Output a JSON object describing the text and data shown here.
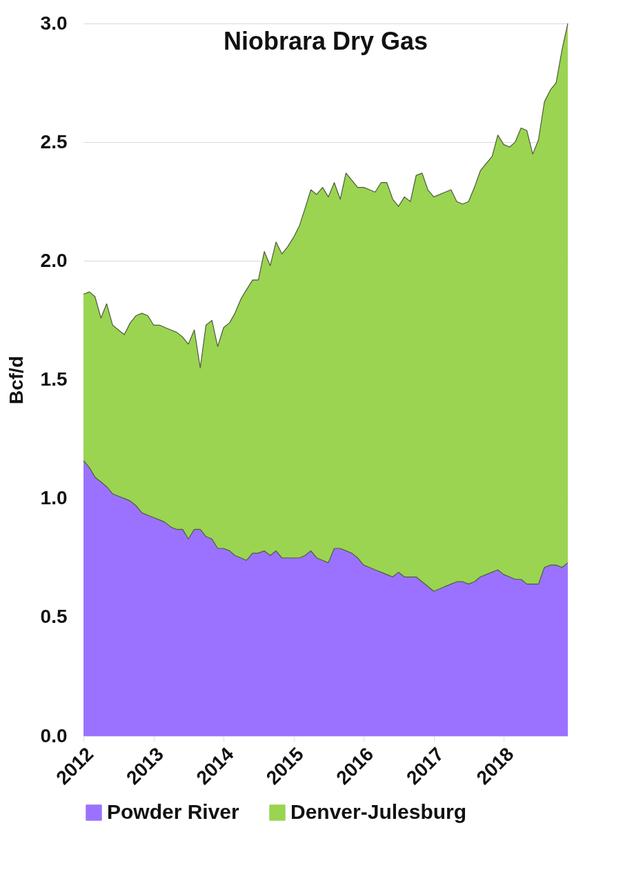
{
  "chart_data": {
    "type": "area",
    "title": "Niobrara Dry Gas",
    "ylabel": "Bcf/d",
    "stacked": true,
    "x": [
      "2012-01",
      "2012-02",
      "2012-03",
      "2012-04",
      "2012-05",
      "2012-06",
      "2012-07",
      "2012-08",
      "2012-09",
      "2012-10",
      "2012-11",
      "2012-12",
      "2013-01",
      "2013-02",
      "2013-03",
      "2013-04",
      "2013-05",
      "2013-06",
      "2013-07",
      "2013-08",
      "2013-09",
      "2013-10",
      "2013-11",
      "2013-12",
      "2014-01",
      "2014-02",
      "2014-03",
      "2014-04",
      "2014-05",
      "2014-06",
      "2014-07",
      "2014-08",
      "2014-09",
      "2014-10",
      "2014-11",
      "2014-12",
      "2015-01",
      "2015-02",
      "2015-03",
      "2015-04",
      "2015-05",
      "2015-06",
      "2015-07",
      "2015-08",
      "2015-09",
      "2015-10",
      "2015-11",
      "2015-12",
      "2016-01",
      "2016-02",
      "2016-03",
      "2016-04",
      "2016-05",
      "2016-06",
      "2016-07",
      "2016-08",
      "2016-09",
      "2016-10",
      "2016-11",
      "2016-12",
      "2017-01",
      "2017-02",
      "2017-03",
      "2017-04",
      "2017-05",
      "2017-06",
      "2017-07",
      "2017-08",
      "2017-09",
      "2017-10",
      "2017-11",
      "2017-12",
      "2018-01",
      "2018-02",
      "2018-03",
      "2018-04",
      "2018-05",
      "2018-06",
      "2018-07",
      "2018-08",
      "2018-09",
      "2018-10",
      "2018-11",
      "2018-12"
    ],
    "series": [
      {
        "name": "Powder River",
        "color": "#9b72ff",
        "values": [
          1.16,
          1.13,
          1.09,
          1.07,
          1.05,
          1.02,
          1.01,
          1.0,
          0.99,
          0.97,
          0.94,
          0.93,
          0.92,
          0.91,
          0.9,
          0.88,
          0.87,
          0.87,
          0.83,
          0.87,
          0.87,
          0.84,
          0.83,
          0.79,
          0.79,
          0.78,
          0.76,
          0.75,
          0.74,
          0.77,
          0.77,
          0.78,
          0.76,
          0.78,
          0.75,
          0.75,
          0.75,
          0.75,
          0.76,
          0.78,
          0.75,
          0.74,
          0.73,
          0.79,
          0.79,
          0.78,
          0.77,
          0.75,
          0.72,
          0.71,
          0.7,
          0.69,
          0.68,
          0.67,
          0.69,
          0.67,
          0.67,
          0.67,
          0.65,
          0.63,
          0.61,
          0.62,
          0.63,
          0.64,
          0.65,
          0.65,
          0.64,
          0.65,
          0.67,
          0.68,
          0.69,
          0.7,
          0.68,
          0.67,
          0.66,
          0.66,
          0.64,
          0.64,
          0.64,
          0.71,
          0.72,
          0.72,
          0.71,
          0.73
        ]
      },
      {
        "name": "Denver-Julesburg",
        "color": "#9bd451",
        "values": [
          0.7,
          0.74,
          0.76,
          0.69,
          0.77,
          0.71,
          0.7,
          0.69,
          0.75,
          0.8,
          0.84,
          0.84,
          0.81,
          0.82,
          0.82,
          0.83,
          0.83,
          0.81,
          0.82,
          0.84,
          0.68,
          0.89,
          0.92,
          0.85,
          0.93,
          0.96,
          1.02,
          1.09,
          1.14,
          1.15,
          1.15,
          1.26,
          1.22,
          1.3,
          1.28,
          1.31,
          1.35,
          1.4,
          1.46,
          1.52,
          1.53,
          1.57,
          1.54,
          1.54,
          1.47,
          1.59,
          1.57,
          1.56,
          1.59,
          1.59,
          1.59,
          1.64,
          1.65,
          1.59,
          1.54,
          1.6,
          1.58,
          1.69,
          1.72,
          1.67,
          1.66,
          1.66,
          1.66,
          1.66,
          1.6,
          1.59,
          1.61,
          1.66,
          1.71,
          1.73,
          1.75,
          1.83,
          1.81,
          1.81,
          1.84,
          1.9,
          1.91,
          1.81,
          1.87,
          1.96,
          2.0,
          2.03,
          2.18,
          2.27
        ]
      }
    ],
    "xlim": [
      "2012-01",
      "2018-12"
    ],
    "xticks": [
      "2012",
      "2013",
      "2014",
      "2015",
      "2016",
      "2017",
      "2018"
    ],
    "ylim": [
      0,
      3
    ],
    "yticks": [
      {
        "value": 0,
        "label": "0.0"
      },
      0.5,
      {
        "value": 1,
        "label": "1.0"
      },
      1.5,
      {
        "value": 2,
        "label": "2.0"
      },
      2.5,
      {
        "value": 3,
        "label": "3.0"
      }
    ],
    "grid": "y",
    "legend": "bottom"
  }
}
